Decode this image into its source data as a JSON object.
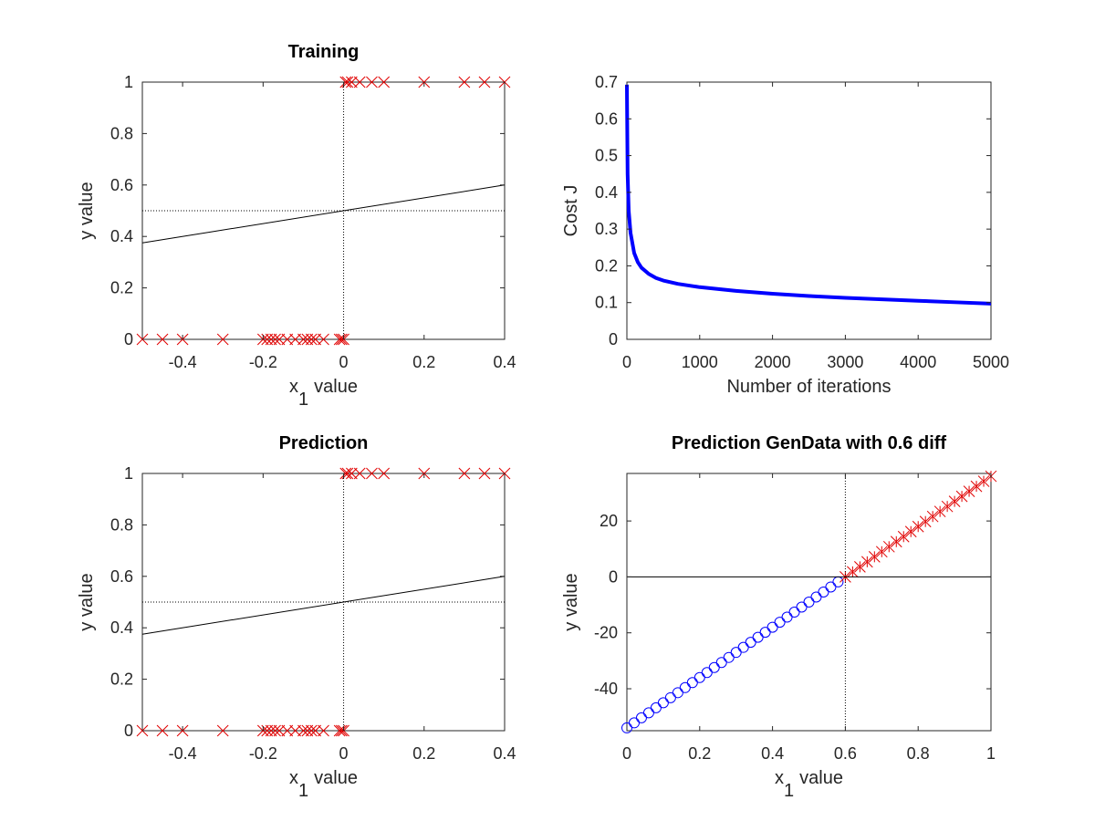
{
  "chart_data": [
    {
      "type": "scatter",
      "title": "Training",
      "xlabel": "x",
      "xlabel_sub": "1",
      "xlabel_suffix": "value",
      "ylabel": "y value",
      "xlim": [
        -0.5,
        0.4
      ],
      "ylim": [
        0,
        1
      ],
      "xticks": [
        -0.4,
        -0.2,
        0,
        0.2,
        0.4
      ],
      "xtick_labels": [
        "-0.4",
        "-0.2",
        "0",
        "0.2",
        "0.4"
      ],
      "yticks": [
        0,
        0.2,
        0.4,
        0.6,
        0.8,
        1
      ],
      "ytick_labels": [
        "0",
        "0.2",
        "0.4",
        "0.6",
        "0.8",
        "1"
      ],
      "grid": false,
      "series": [
        {
          "marker": "x",
          "color": "#e00000",
          "x": [
            -0.5,
            -0.45,
            -0.4,
            -0.3,
            -0.2,
            -0.19,
            -0.18,
            -0.17,
            -0.16,
            -0.14,
            -0.12,
            -0.1,
            -0.09,
            -0.08,
            -0.07,
            -0.05,
            -0.01,
            -0.005,
            0,
            0.005,
            0.01,
            0.02,
            0.04,
            0.07,
            0.1,
            0.2,
            0.3,
            0.35,
            0.4
          ],
          "y": [
            0,
            0,
            0,
            0,
            0,
            0,
            0,
            0,
            0,
            0,
            0,
            0,
            0,
            0,
            0,
            0,
            0,
            0,
            0,
            1,
            1,
            1,
            1,
            1,
            1,
            1,
            1,
            1,
            1
          ]
        },
        {
          "kind": "line",
          "color": "#000000",
          "x": [
            -0.5,
            0.4
          ],
          "y": [
            0.375,
            0.6
          ]
        },
        {
          "kind": "line",
          "style": "dotted",
          "color": "#000000",
          "x": [
            -0.5,
            0.4
          ],
          "y": [
            0.5,
            0.5
          ]
        },
        {
          "kind": "line",
          "style": "dotted",
          "color": "#000000",
          "x": [
            0,
            0
          ],
          "y": [
            0,
            1
          ]
        }
      ]
    },
    {
      "type": "line",
      "title": "",
      "xlabel": "Number of iterations",
      "ylabel": "Cost J",
      "xlim": [
        0,
        5000
      ],
      "ylim": [
        0,
        0.7
      ],
      "xticks": [
        0,
        1000,
        2000,
        3000,
        4000,
        5000
      ],
      "xtick_labels": [
        "0",
        "1000",
        "2000",
        "3000",
        "4000",
        "5000"
      ],
      "yticks": [
        0,
        0.1,
        0.2,
        0.3,
        0.4,
        0.5,
        0.6,
        0.7
      ],
      "ytick_labels": [
        "0",
        "0.1",
        "0.2",
        "0.3",
        "0.4",
        "0.5",
        "0.6",
        "0.7"
      ],
      "grid": false,
      "series": [
        {
          "color": "#0000ff",
          "x": [
            0,
            10,
            25,
            50,
            100,
            150,
            200,
            300,
            400,
            500,
            700,
            1000,
            1500,
            2000,
            2500,
            3000,
            3500,
            4000,
            4500,
            5000
          ],
          "y": [
            0.693,
            0.45,
            0.35,
            0.29,
            0.235,
            0.21,
            0.195,
            0.178,
            0.167,
            0.16,
            0.151,
            0.142,
            0.132,
            0.124,
            0.118,
            0.113,
            0.109,
            0.105,
            0.101,
            0.097
          ]
        }
      ]
    },
    {
      "type": "scatter",
      "title": "Prediction",
      "xlabel": "x",
      "xlabel_sub": "1",
      "xlabel_suffix": "value",
      "ylabel": "y value",
      "xlim": [
        -0.5,
        0.4
      ],
      "ylim": [
        0,
        1
      ],
      "xticks": [
        -0.4,
        -0.2,
        0,
        0.2,
        0.4
      ],
      "xtick_labels": [
        "-0.4",
        "-0.2",
        "0",
        "0.2",
        "0.4"
      ],
      "yticks": [
        0,
        0.2,
        0.4,
        0.6,
        0.8,
        1
      ],
      "ytick_labels": [
        "0",
        "0.2",
        "0.4",
        "0.6",
        "0.8",
        "1"
      ],
      "grid": false,
      "series": [
        {
          "marker": "x",
          "color": "#e00000",
          "x": [
            -0.5,
            -0.45,
            -0.4,
            -0.3,
            -0.2,
            -0.19,
            -0.18,
            -0.17,
            -0.16,
            -0.14,
            -0.12,
            -0.1,
            -0.09,
            -0.08,
            -0.07,
            -0.05,
            -0.01,
            -0.005,
            0,
            0.005,
            0.01,
            0.02,
            0.04,
            0.07,
            0.1,
            0.2,
            0.3,
            0.35,
            0.4
          ],
          "y": [
            0,
            0,
            0,
            0,
            0,
            0,
            0,
            0,
            0,
            0,
            0,
            0,
            0,
            0,
            0,
            0,
            0,
            0,
            0,
            1,
            1,
            1,
            1,
            1,
            1,
            1,
            1,
            1,
            1
          ]
        },
        {
          "kind": "line",
          "color": "#000000",
          "x": [
            -0.5,
            0.4
          ],
          "y": [
            0.375,
            0.6
          ]
        },
        {
          "kind": "line",
          "style": "dotted",
          "color": "#000000",
          "x": [
            -0.5,
            0.4
          ],
          "y": [
            0.5,
            0.5
          ]
        },
        {
          "kind": "line",
          "style": "dotted",
          "color": "#000000",
          "x": [
            0,
            0
          ],
          "y": [
            0,
            1
          ]
        }
      ]
    },
    {
      "type": "scatter",
      "title": "Prediction GenData with 0.6 diff",
      "xlabel": "x",
      "xlabel_sub": "1",
      "xlabel_suffix": "value",
      "ylabel": "y value",
      "xlim": [
        0,
        1
      ],
      "ylim": [
        -55,
        37
      ],
      "xticks": [
        0,
        0.2,
        0.4,
        0.6,
        0.8,
        1
      ],
      "xtick_labels": [
        "0",
        "0.2",
        "0.4",
        "0.6",
        "0.8",
        "1"
      ],
      "yticks": [
        -40,
        -20,
        0,
        20
      ],
      "ytick_labels": [
        "-40",
        "-20",
        "0",
        "20"
      ],
      "grid": false,
      "series": [
        {
          "marker": "o",
          "color": "#0000ff",
          "x_start": 0,
          "x_end": 0.58,
          "x_step": 0.02,
          "line": {
            "slope": 90,
            "intercept": -54
          }
        },
        {
          "marker": "*",
          "color": "#e00000",
          "x_start": 0.6,
          "x_end": 1.0,
          "x_step": 0.02,
          "line": {
            "slope": 90,
            "intercept": -54
          }
        },
        {
          "kind": "line",
          "color": "#000000",
          "x": [
            0,
            1
          ],
          "y": [
            0,
            0
          ]
        },
        {
          "kind": "line",
          "style": "dotted",
          "color": "#000000",
          "x": [
            0.6,
            0.6
          ],
          "y": [
            -55,
            37
          ]
        }
      ]
    }
  ]
}
